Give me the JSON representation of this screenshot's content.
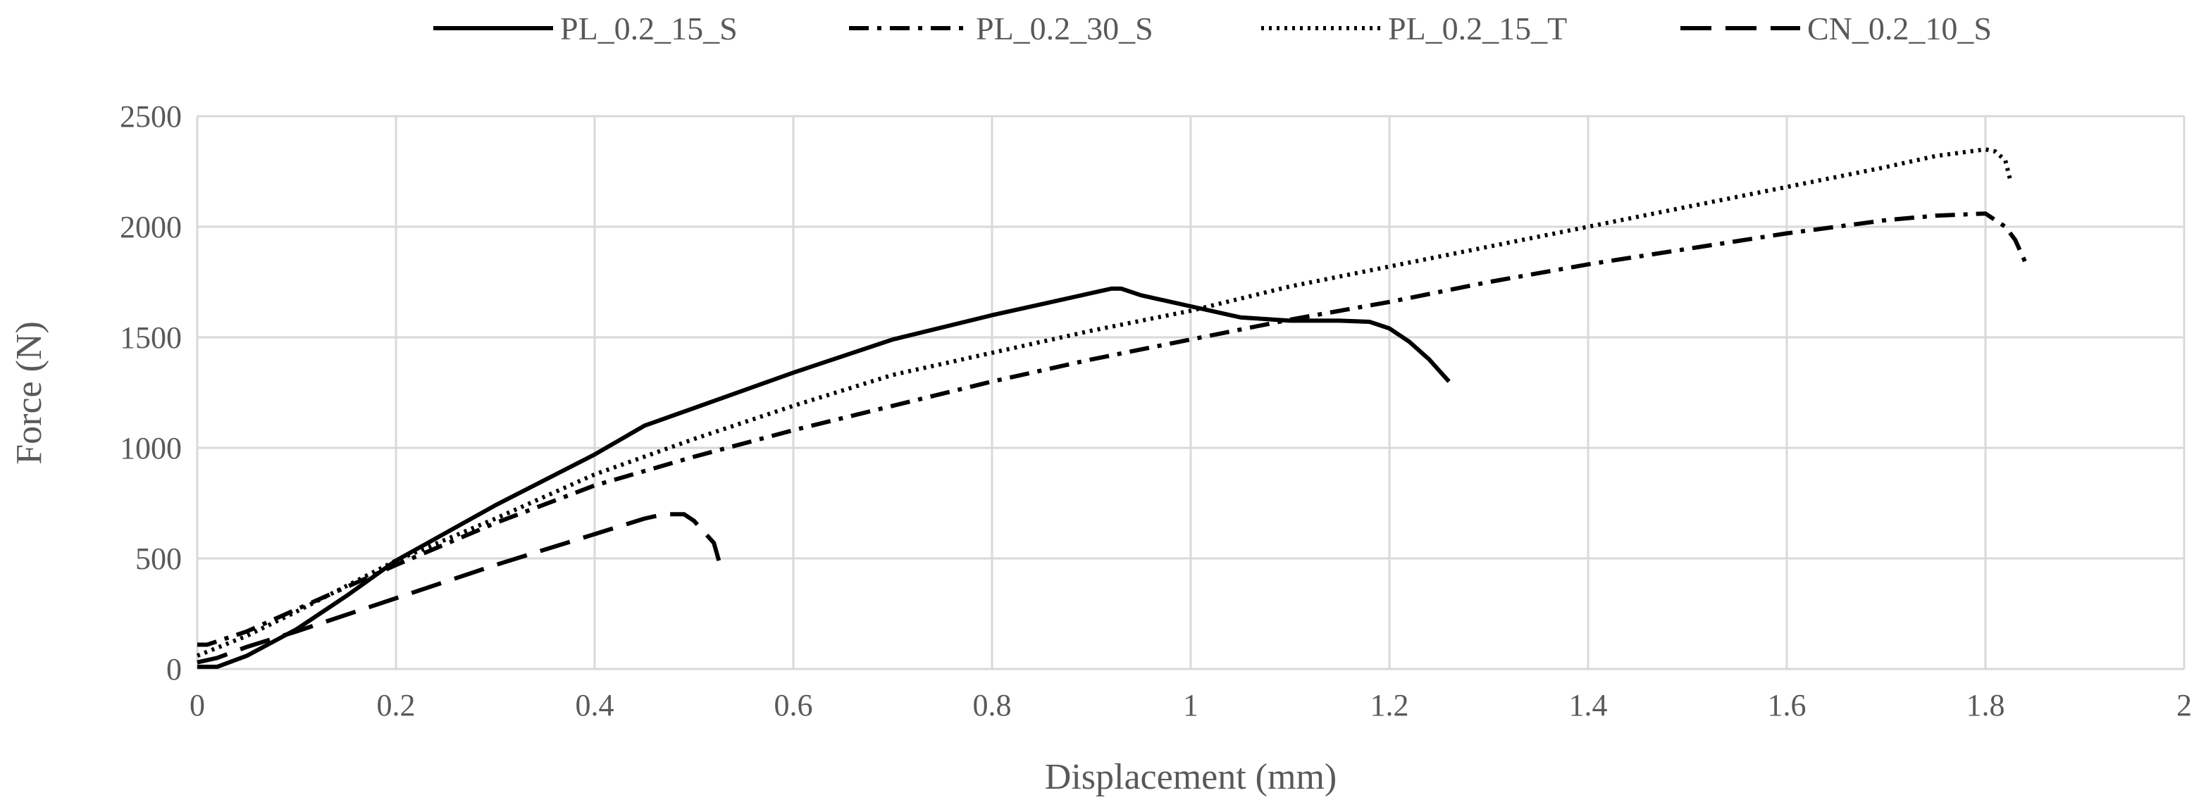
{
  "chart_data": {
    "type": "line",
    "title": "",
    "xlabel": "Displacement (mm)",
    "ylabel": "Force (N)",
    "xlim": [
      0,
      2
    ],
    "ylim": [
      0,
      2500
    ],
    "xticks": [
      "0",
      "0.2",
      "0.4",
      "0.6",
      "0.8",
      "1",
      "1.2",
      "1.4",
      "1.6",
      "1.8",
      "2"
    ],
    "yticks": [
      "0",
      "500",
      "1000",
      "1500",
      "2000",
      "2500"
    ],
    "grid": true,
    "legend_position": "top",
    "series": [
      {
        "name": "PL_0.2_15_S",
        "line_style": "solid",
        "x": [
          0,
          0.02,
          0.05,
          0.1,
          0.15,
          0.2,
          0.3,
          0.4,
          0.45,
          0.5,
          0.6,
          0.7,
          0.8,
          0.85,
          0.9,
          0.92,
          0.93,
          0.95,
          1.0,
          1.05,
          1.1,
          1.15,
          1.18,
          1.2,
          1.22,
          1.24,
          1.25,
          1.26
        ],
        "y": [
          10,
          10,
          60,
          180,
          330,
          490,
          740,
          970,
          1100,
          1180,
          1340,
          1490,
          1600,
          1650,
          1700,
          1720,
          1720,
          1690,
          1640,
          1590,
          1575,
          1575,
          1570,
          1540,
          1480,
          1400,
          1350,
          1300
        ]
      },
      {
        "name": "PL_0.2_30_S",
        "line_style": "dash-dot",
        "x": [
          0,
          0.01,
          0.05,
          0.1,
          0.2,
          0.3,
          0.4,
          0.5,
          0.6,
          0.7,
          0.8,
          0.9,
          1.0,
          1.1,
          1.2,
          1.3,
          1.4,
          1.5,
          1.6,
          1.7,
          1.75,
          1.8,
          1.82,
          1.83,
          1.84
        ],
        "y": [
          110,
          110,
          170,
          270,
          470,
          660,
          830,
          960,
          1080,
          1190,
          1300,
          1400,
          1490,
          1580,
          1660,
          1750,
          1830,
          1900,
          1970,
          2030,
          2050,
          2060,
          2000,
          1940,
          1840
        ]
      },
      {
        "name": "PL_0.2_15_T",
        "line_style": "dotted",
        "x": [
          0,
          0.05,
          0.1,
          0.2,
          0.3,
          0.4,
          0.5,
          0.6,
          0.7,
          0.8,
          0.9,
          1.0,
          1.1,
          1.2,
          1.3,
          1.4,
          1.5,
          1.6,
          1.7,
          1.75,
          1.8,
          1.81,
          1.82,
          1.825
        ],
        "y": [
          60,
          150,
          260,
          490,
          680,
          880,
          1040,
          1190,
          1330,
          1430,
          1530,
          1620,
          1730,
          1820,
          1910,
          2000,
          2090,
          2180,
          2270,
          2320,
          2350,
          2340,
          2300,
          2210
        ]
      },
      {
        "name": "CN_0.2_10_S",
        "line_style": "long-dash",
        "x": [
          0,
          0.02,
          0.05,
          0.1,
          0.2,
          0.3,
          0.4,
          0.45,
          0.47,
          0.49,
          0.5,
          0.51,
          0.52,
          0.525
        ],
        "y": [
          30,
          50,
          100,
          170,
          320,
          470,
          610,
          680,
          700,
          700,
          670,
          620,
          570,
          490
        ]
      }
    ]
  }
}
